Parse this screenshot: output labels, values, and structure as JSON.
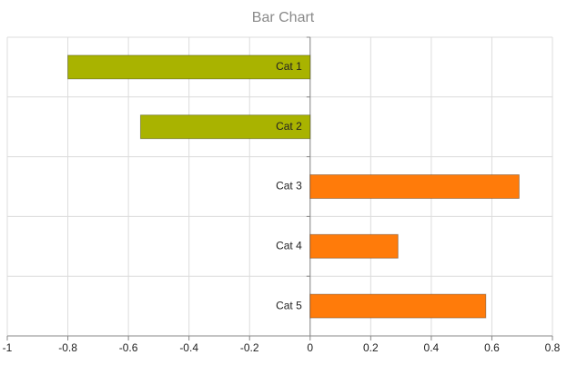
{
  "chart_data": {
    "type": "bar",
    "orientation": "horizontal",
    "title": "Bar Chart",
    "categories": [
      "Cat 1",
      "Cat 2",
      "Cat 3",
      "Cat 4",
      "Cat 5"
    ],
    "values": [
      -0.8,
      -0.56,
      0.69,
      0.29,
      0.58
    ],
    "colors": [
      "#a9b300",
      "#a9b300",
      "#ff7b0a",
      "#ff7b0a",
      "#ff7b0a"
    ],
    "xlim": [
      -1,
      0.8
    ],
    "xticks": [
      -1,
      -0.8,
      -0.6,
      -0.4,
      -0.2,
      0,
      0.2,
      0.4,
      0.6,
      0.8
    ],
    "grid": true
  }
}
